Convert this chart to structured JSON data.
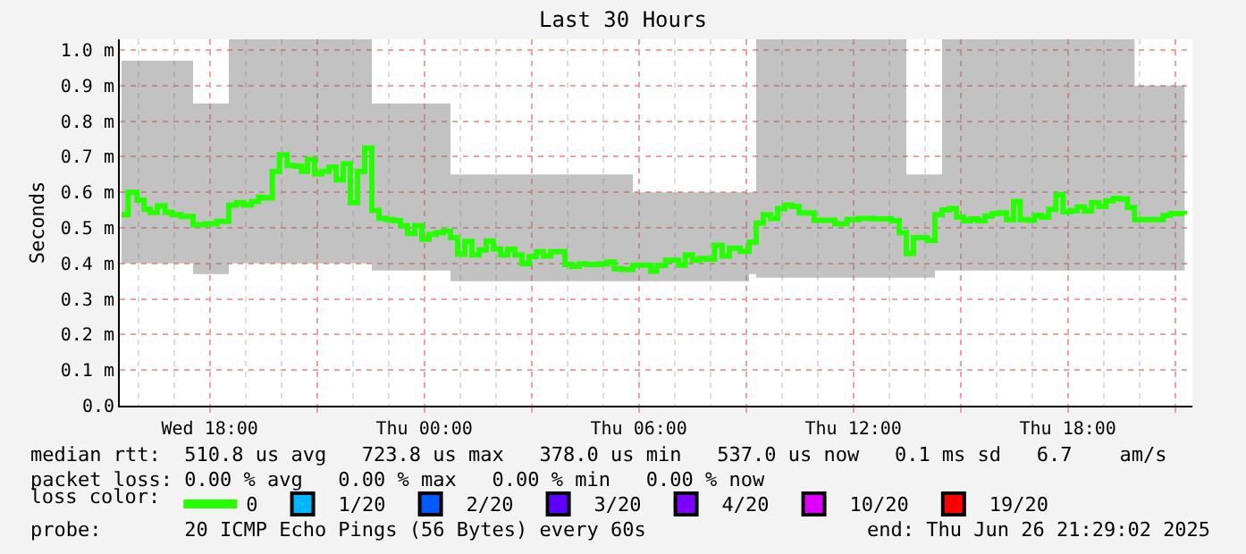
{
  "chart_data": {
    "type": "step",
    "title": "Last 30 Hours",
    "ylabel": "Seconds",
    "legend_title": "loss color:",
    "legend": "bottom",
    "grid": true,
    "marker": "none",
    "line_style": "solid",
    "xlim": [
      "2025-06-25T15:29",
      "2025-06-26T21:29"
    ],
    "xticks": [
      {
        "value": "2025-06-25T18:00",
        "label": "Wed 18:00"
      },
      {
        "value": "2025-06-25T21:00",
        "label": null
      },
      {
        "value": "2025-06-26T00:00",
        "label": "Thu 00:00"
      },
      {
        "value": "2025-06-26T03:00",
        "label": null
      },
      {
        "value": "2025-06-26T06:00",
        "label": "Thu 06:00"
      },
      {
        "value": "2025-06-26T09:00",
        "label": null
      },
      {
        "value": "2025-06-26T12:00",
        "label": "Thu 12:00"
      },
      {
        "value": "2025-06-26T15:00",
        "label": null
      },
      {
        "value": "2025-06-26T18:00",
        "label": "Thu 18:00"
      },
      {
        "value": "2025-06-26T21:00",
        "label": null
      }
    ],
    "ylim": [
      0,
      1.03
    ],
    "yticks": [
      {
        "value": 0,
        "label": "0.0"
      },
      {
        "value": 0.1,
        "label": "0.1 m"
      },
      {
        "value": 0.2,
        "label": "0.2 m"
      },
      {
        "value": 0.3,
        "label": "0.3 m"
      },
      {
        "value": 0.4,
        "label": "0.4 m"
      },
      {
        "value": 0.5,
        "label": "0.5 m"
      },
      {
        "value": 0.6,
        "label": "0.6 m"
      },
      {
        "value": 0.7,
        "label": "0.7 m"
      },
      {
        "value": 0.8,
        "label": "0.8 m"
      },
      {
        "value": 0.9,
        "label": "0.9 m"
      },
      {
        "value": 1.0,
        "label": "1.0 m"
      }
    ],
    "x": [
      "2025-06-25T15:32",
      "2025-06-25T15:43",
      "2025-06-25T15:58",
      "2025-06-25T16:10",
      "2025-06-25T16:20",
      "2025-06-25T16:32",
      "2025-06-25T16:45",
      "2025-06-25T16:57",
      "2025-06-25T17:12",
      "2025-06-25T17:32",
      "2025-06-25T17:52",
      "2025-06-25T18:12",
      "2025-06-25T18:32",
      "2025-06-25T18:45",
      "2025-06-25T18:57",
      "2025-06-25T19:10",
      "2025-06-25T19:22",
      "2025-06-25T19:32",
      "2025-06-25T19:45",
      "2025-06-25T19:57",
      "2025-06-25T20:10",
      "2025-06-25T20:22",
      "2025-06-25T20:34",
      "2025-06-25T20:44",
      "2025-06-25T20:56",
      "2025-06-25T21:08",
      "2025-06-25T21:20",
      "2025-06-25T21:32",
      "2025-06-25T21:44",
      "2025-06-25T21:56",
      "2025-06-25T22:08",
      "2025-06-25T22:20",
      "2025-06-25T22:32",
      "2025-06-25T22:44",
      "2025-06-25T22:56",
      "2025-06-25T23:08",
      "2025-06-25T23:20",
      "2025-06-25T23:32",
      "2025-06-25T23:44",
      "2025-06-25T23:56",
      "2025-06-26T00:08",
      "2025-06-26T00:20",
      "2025-06-26T00:32",
      "2025-06-26T00:44",
      "2025-06-26T00:56",
      "2025-06-26T01:08",
      "2025-06-26T01:20",
      "2025-06-26T01:32",
      "2025-06-26T01:44",
      "2025-06-26T01:56",
      "2025-06-26T02:08",
      "2025-06-26T02:20",
      "2025-06-26T02:32",
      "2025-06-26T02:44",
      "2025-06-26T02:56",
      "2025-06-26T03:08",
      "2025-06-26T03:20",
      "2025-06-26T03:32",
      "2025-06-26T03:44",
      "2025-06-26T03:56",
      "2025-06-26T04:08",
      "2025-06-26T04:20",
      "2025-06-26T04:32",
      "2025-06-26T04:44",
      "2025-06-26T04:55",
      "2025-06-26T05:07",
      "2025-06-26T05:19",
      "2025-06-26T05:31",
      "2025-06-26T05:50",
      "2025-06-26T06:10",
      "2025-06-26T06:20",
      "2025-06-26T06:30",
      "2025-06-26T06:45",
      "2025-06-26T07:07",
      "2025-06-26T07:18",
      "2025-06-26T07:30",
      "2025-06-26T07:42",
      "2025-06-26T07:54",
      "2025-06-26T08:07",
      "2025-06-26T08:20",
      "2025-06-26T08:32",
      "2025-06-26T08:50",
      "2025-06-26T09:05",
      "2025-06-26T09:17",
      "2025-06-26T09:29",
      "2025-06-26T09:41",
      "2025-06-26T09:53",
      "2025-06-26T10:05",
      "2025-06-26T10:17",
      "2025-06-26T10:29",
      "2025-06-26T10:54",
      "2025-06-26T11:29",
      "2025-06-26T11:49",
      "2025-06-26T12:09",
      "2025-06-26T12:34",
      "2025-06-26T13:04",
      "2025-06-26T13:17",
      "2025-06-26T13:29",
      "2025-06-26T13:41",
      "2025-06-26T14:04",
      "2025-06-26T14:17",
      "2025-06-26T14:29",
      "2025-06-26T14:41",
      "2025-06-26T14:53",
      "2025-06-26T15:05",
      "2025-06-26T15:17",
      "2025-06-26T15:29",
      "2025-06-26T15:41",
      "2025-06-26T15:53",
      "2025-06-26T16:05",
      "2025-06-26T16:17",
      "2025-06-26T16:29",
      "2025-06-26T16:40",
      "2025-06-26T16:52",
      "2025-06-26T17:04",
      "2025-06-26T17:16",
      "2025-06-26T17:28",
      "2025-06-26T17:40",
      "2025-06-26T17:52",
      "2025-06-26T18:04",
      "2025-06-26T18:16",
      "2025-06-26T18:28",
      "2025-06-26T18:40",
      "2025-06-26T18:52",
      "2025-06-26T19:04",
      "2025-06-26T19:16",
      "2025-06-26T19:28",
      "2025-06-26T19:40",
      "2025-06-26T19:52",
      "2025-06-26T20:08",
      "2025-06-26T20:28",
      "2025-06-26T20:40",
      "2025-06-26T20:52",
      "2025-06-26T21:04",
      "2025-06-26T21:16"
    ],
    "series": [
      {
        "name": "0",
        "color": "#26ff00",
        "values": [
          0.537,
          0.6,
          0.578,
          0.552,
          0.543,
          0.562,
          0.543,
          0.537,
          0.532,
          0.509,
          0.511,
          0.518,
          0.564,
          0.571,
          0.564,
          0.574,
          0.586,
          0.584,
          0.658,
          0.705,
          0.675,
          0.673,
          0.659,
          0.692,
          0.652,
          0.659,
          0.671,
          0.635,
          0.68,
          0.571,
          0.659,
          0.724,
          0.549,
          0.526,
          0.523,
          0.52,
          0.506,
          0.484,
          0.506,
          0.468,
          0.482,
          0.486,
          0.491,
          0.472,
          0.426,
          0.462,
          0.424,
          0.438,
          0.463,
          0.441,
          0.424,
          0.44,
          0.424,
          0.399,
          0.419,
          0.433,
          0.421,
          0.433,
          0.433,
          0.397,
          0.392,
          0.399,
          0.397,
          0.397,
          0.399,
          0.404,
          0.385,
          0.383,
          0.395,
          0.395,
          0.378,
          0.394,
          0.409,
          0.395,
          0.424,
          0.409,
          0.414,
          0.412,
          0.451,
          0.421,
          0.443,
          0.434,
          0.46,
          0.513,
          0.537,
          0.526,
          0.554,
          0.564,
          0.56,
          0.542,
          0.521,
          0.511,
          0.523,
          0.526,
          0.525,
          0.52,
          0.486,
          0.428,
          0.472,
          0.465,
          0.537,
          0.55,
          0.554,
          0.53,
          0.52,
          0.525,
          0.52,
          0.533,
          0.54,
          0.542,
          0.523,
          0.574,
          0.523,
          0.521,
          0.535,
          0.53,
          0.552,
          0.593,
          0.545,
          0.548,
          0.559,
          0.547,
          0.571,
          0.56,
          0.576,
          0.583,
          0.581,
          0.557,
          0.523,
          0.523,
          0.523,
          0.535,
          0.54,
          0.54,
          0.538
        ],
        "lower": [
          0.4,
          0.4,
          0.4,
          0.4,
          0.4,
          0.4,
          0.4,
          0.4,
          0.4,
          0.37,
          0.37,
          0.37,
          0.4,
          0.4,
          0.4,
          0.4,
          0.4,
          0.4,
          0.4,
          0.4,
          0.4,
          0.4,
          0.4,
          0.4,
          0.4,
          0.4,
          0.4,
          0.4,
          0.4,
          0.4,
          0.4,
          0.4,
          0.38,
          0.38,
          0.38,
          0.38,
          0.38,
          0.38,
          0.38,
          0.38,
          0.38,
          0.38,
          0.38,
          0.35,
          0.35,
          0.35,
          0.35,
          0.35,
          0.35,
          0.35,
          0.35,
          0.35,
          0.35,
          0.35,
          0.35,
          0.35,
          0.35,
          0.35,
          0.35,
          0.35,
          0.35,
          0.35,
          0.35,
          0.35,
          0.35,
          0.35,
          0.35,
          0.35,
          0.35,
          0.35,
          0.35,
          0.35,
          0.35,
          0.35,
          0.35,
          0.35,
          0.35,
          0.35,
          0.35,
          0.35,
          0.35,
          0.35,
          0.37,
          0.36,
          0.36,
          0.36,
          0.36,
          0.36,
          0.36,
          0.36,
          0.36,
          0.36,
          0.36,
          0.36,
          0.36,
          0.36,
          0.36,
          0.36,
          0.36,
          0.36,
          0.38,
          0.38,
          0.38,
          0.38,
          0.38,
          0.38,
          0.38,
          0.38,
          0.38,
          0.38,
          0.38,
          0.38,
          0.38,
          0.38,
          0.38,
          0.38,
          0.38,
          0.38,
          0.38,
          0.38,
          0.38,
          0.38,
          0.38,
          0.38,
          0.38,
          0.38,
          0.38,
          0.38,
          0.38,
          0.38,
          0.38,
          0.38,
          0.38,
          0.38,
          0.38
        ],
        "upper": [
          0.97,
          0.97,
          0.97,
          0.97,
          0.97,
          0.97,
          0.97,
          0.97,
          0.97,
          0.85,
          0.85,
          0.85,
          1.03,
          1.03,
          1.03,
          1.03,
          1.03,
          1.03,
          1.03,
          1.03,
          1.03,
          1.03,
          1.03,
          1.03,
          1.03,
          1.03,
          1.03,
          1.03,
          1.03,
          1.03,
          1.03,
          1.03,
          0.85,
          0.85,
          0.85,
          0.85,
          0.85,
          0.85,
          0.85,
          0.85,
          0.85,
          0.85,
          0.85,
          0.65,
          0.65,
          0.65,
          0.65,
          0.65,
          0.65,
          0.65,
          0.65,
          0.65,
          0.65,
          0.65,
          0.65,
          0.65,
          0.65,
          0.65,
          0.65,
          0.65,
          0.65,
          0.65,
          0.65,
          0.65,
          0.65,
          0.65,
          0.65,
          0.65,
          0.6,
          0.6,
          0.6,
          0.6,
          0.6,
          0.6,
          0.6,
          0.6,
          0.6,
          0.6,
          0.6,
          0.6,
          0.6,
          0.6,
          0.6,
          1.03,
          1.03,
          1.03,
          1.03,
          1.03,
          1.03,
          1.03,
          1.03,
          1.03,
          1.03,
          1.03,
          1.03,
          1.03,
          1.03,
          0.65,
          0.65,
          0.65,
          0.65,
          1.03,
          1.03,
          1.03,
          1.03,
          1.03,
          1.03,
          1.03,
          1.03,
          1.03,
          1.03,
          1.03,
          1.03,
          1.03,
          1.03,
          1.03,
          1.03,
          1.03,
          1.03,
          1.03,
          1.03,
          1.03,
          1.03,
          1.03,
          1.03,
          1.03,
          1.03,
          1.03,
          0.9,
          0.9,
          0.9,
          0.9,
          0.9,
          0.9,
          0.9
        ]
      },
      {
        "name": "1/20",
        "color": "#00b8ff",
        "values": [
          null,
          null,
          null,
          null,
          null,
          null,
          null,
          null,
          null,
          null,
          null,
          null,
          null,
          null,
          null,
          null,
          null,
          null,
          null,
          null,
          null,
          null,
          null,
          null,
          null,
          null,
          null,
          null,
          null,
          null,
          null,
          null,
          null,
          null,
          null,
          null,
          null,
          null,
          null,
          null,
          null,
          null,
          null,
          null,
          null,
          null,
          null,
          null,
          null,
          null,
          null,
          null,
          null,
          null,
          null,
          null,
          null,
          null,
          null,
          null,
          null,
          null,
          null,
          null,
          null,
          null,
          null,
          null,
          null,
          null,
          null,
          null,
          null,
          null,
          null,
          null,
          null,
          null,
          null,
          null,
          null,
          null,
          null,
          null,
          null,
          null,
          null,
          null,
          null,
          null,
          null,
          null,
          null,
          null,
          null,
          null,
          null,
          null,
          null,
          null,
          null,
          null,
          null,
          null,
          null,
          null,
          null,
          null,
          null,
          null,
          null,
          null,
          null,
          null,
          null,
          null,
          null,
          null,
          null,
          null,
          null,
          null,
          null,
          null,
          null,
          null,
          null,
          null,
          null,
          null,
          null,
          null,
          null,
          null,
          null
        ]
      },
      {
        "name": "2/20",
        "color": "#0059ff",
        "values": [
          null,
          null,
          null,
          null,
          null,
          null,
          null,
          null,
          null,
          null,
          null,
          null,
          null,
          null,
          null,
          null,
          null,
          null,
          null,
          null,
          null,
          null,
          null,
          null,
          null,
          null,
          null,
          null,
          null,
          null,
          null,
          null,
          null,
          null,
          null,
          null,
          null,
          null,
          null,
          null,
          null,
          null,
          null,
          null,
          null,
          null,
          null,
          null,
          null,
          null,
          null,
          null,
          null,
          null,
          null,
          null,
          null,
          null,
          null,
          null,
          null,
          null,
          null,
          null,
          null,
          null,
          null,
          null,
          null,
          null,
          null,
          null,
          null,
          null,
          null,
          null,
          null,
          null,
          null,
          null,
          null,
          null,
          null,
          null,
          null,
          null,
          null,
          null,
          null,
          null,
          null,
          null,
          null,
          null,
          null,
          null,
          null,
          null,
          null,
          null,
          null,
          null,
          null,
          null,
          null,
          null,
          null,
          null,
          null,
          null,
          null,
          null,
          null,
          null,
          null,
          null,
          null,
          null,
          null,
          null,
          null,
          null,
          null,
          null,
          null,
          null,
          null,
          null,
          null,
          null,
          null,
          null,
          null,
          null,
          null
        ]
      },
      {
        "name": "3/20",
        "color": "#5e00ff",
        "values": [
          null,
          null,
          null,
          null,
          null,
          null,
          null,
          null,
          null,
          null,
          null,
          null,
          null,
          null,
          null,
          null,
          null,
          null,
          null,
          null,
          null,
          null,
          null,
          null,
          null,
          null,
          null,
          null,
          null,
          null,
          null,
          null,
          null,
          null,
          null,
          null,
          null,
          null,
          null,
          null,
          null,
          null,
          null,
          null,
          null,
          null,
          null,
          null,
          null,
          null,
          null,
          null,
          null,
          null,
          null,
          null,
          null,
          null,
          null,
          null,
          null,
          null,
          null,
          null,
          null,
          null,
          null,
          null,
          null,
          null,
          null,
          null,
          null,
          null,
          null,
          null,
          null,
          null,
          null,
          null,
          null,
          null,
          null,
          null,
          null,
          null,
          null,
          null,
          null,
          null,
          null,
          null,
          null,
          null,
          null,
          null,
          null,
          null,
          null,
          null,
          null,
          null,
          null,
          null,
          null,
          null,
          null,
          null,
          null,
          null,
          null,
          null,
          null,
          null,
          null,
          null,
          null,
          null,
          null,
          null,
          null,
          null,
          null,
          null,
          null,
          null,
          null,
          null,
          null,
          null,
          null,
          null,
          null,
          null,
          null
        ]
      },
      {
        "name": "4/20",
        "color": "#7e00ff",
        "values": [
          null,
          null,
          null,
          null,
          null,
          null,
          null,
          null,
          null,
          null,
          null,
          null,
          null,
          null,
          null,
          null,
          null,
          null,
          null,
          null,
          null,
          null,
          null,
          null,
          null,
          null,
          null,
          null,
          null,
          null,
          null,
          null,
          null,
          null,
          null,
          null,
          null,
          null,
          null,
          null,
          null,
          null,
          null,
          null,
          null,
          null,
          null,
          null,
          null,
          null,
          null,
          null,
          null,
          null,
          null,
          null,
          null,
          null,
          null,
          null,
          null,
          null,
          null,
          null,
          null,
          null,
          null,
          null,
          null,
          null,
          null,
          null,
          null,
          null,
          null,
          null,
          null,
          null,
          null,
          null,
          null,
          null,
          null,
          null,
          null,
          null,
          null,
          null,
          null,
          null,
          null,
          null,
          null,
          null,
          null,
          null,
          null,
          null,
          null,
          null,
          null,
          null,
          null,
          null,
          null,
          null,
          null,
          null,
          null,
          null,
          null,
          null,
          null,
          null,
          null,
          null,
          null,
          null,
          null,
          null,
          null,
          null,
          null,
          null,
          null,
          null,
          null,
          null,
          null,
          null,
          null,
          null,
          null,
          null,
          null
        ]
      },
      {
        "name": "10/20",
        "color": "#dd00ff",
        "values": [
          null,
          null,
          null,
          null,
          null,
          null,
          null,
          null,
          null,
          null,
          null,
          null,
          null,
          null,
          null,
          null,
          null,
          null,
          null,
          null,
          null,
          null,
          null,
          null,
          null,
          null,
          null,
          null,
          null,
          null,
          null,
          null,
          null,
          null,
          null,
          null,
          null,
          null,
          null,
          null,
          null,
          null,
          null,
          null,
          null,
          null,
          null,
          null,
          null,
          null,
          null,
          null,
          null,
          null,
          null,
          null,
          null,
          null,
          null,
          null,
          null,
          null,
          null,
          null,
          null,
          null,
          null,
          null,
          null,
          null,
          null,
          null,
          null,
          null,
          null,
          null,
          null,
          null,
          null,
          null,
          null,
          null,
          null,
          null,
          null,
          null,
          null,
          null,
          null,
          null,
          null,
          null,
          null,
          null,
          null,
          null,
          null,
          null,
          null,
          null,
          null,
          null,
          null,
          null,
          null,
          null,
          null,
          null,
          null,
          null,
          null,
          null,
          null,
          null,
          null,
          null,
          null,
          null,
          null,
          null,
          null,
          null,
          null,
          null,
          null,
          null,
          null,
          null,
          null,
          null,
          null,
          null,
          null,
          null,
          null
        ]
      },
      {
        "name": "19/20",
        "color": "#ff0000",
        "values": [
          null,
          null,
          null,
          null,
          null,
          null,
          null,
          null,
          null,
          null,
          null,
          null,
          null,
          null,
          null,
          null,
          null,
          null,
          null,
          null,
          null,
          null,
          null,
          null,
          null,
          null,
          null,
          null,
          null,
          null,
          null,
          null,
          null,
          null,
          null,
          null,
          null,
          null,
          null,
          null,
          null,
          null,
          null,
          null,
          null,
          null,
          null,
          null,
          null,
          null,
          null,
          null,
          null,
          null,
          null,
          null,
          null,
          null,
          null,
          null,
          null,
          null,
          null,
          null,
          null,
          null,
          null,
          null,
          null,
          null,
          null,
          null,
          null,
          null,
          null,
          null,
          null,
          null,
          null,
          null,
          null,
          null,
          null,
          null,
          null,
          null,
          null,
          null,
          null,
          null,
          null,
          null,
          null,
          null,
          null,
          null,
          null,
          null,
          null,
          null,
          null,
          null,
          null,
          null,
          null,
          null,
          null,
          null,
          null,
          null,
          null,
          null,
          null,
          null,
          null,
          null,
          null,
          null,
          null,
          null,
          null,
          null,
          null,
          null,
          null,
          null,
          null,
          null,
          null,
          null,
          null,
          null,
          null,
          null,
          null
        ]
      }
    ],
    "annotations": [
      "median rtt:  510.8 us avg   723.8 us max   378.0 us min   537.0 us now   0.1 ms sd   6.7    am/s",
      "packet loss: 0.00 % avg   0.00 % max   0.00 % min   0.00 % now",
      "probe:       20 ICMP Echo Pings (56 Bytes) every 60s",
      "end: Thu Jun 26 21:29:02 2025"
    ]
  }
}
